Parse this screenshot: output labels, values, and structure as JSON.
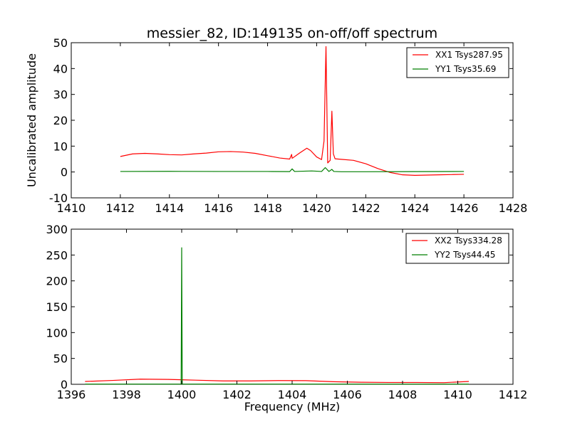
{
  "figure_title": "messier_82, ID:149135 on-off/off spectrum",
  "colors": {
    "red": "#ff0000",
    "green": "#007f00"
  },
  "chart_data": [
    {
      "type": "line",
      "title": "messier_82, ID:149135 on-off/off spectrum",
      "xlabel": "",
      "ylabel": "Uncalibrated amplitude",
      "xlim": [
        1410,
        1428
      ],
      "ylim": [
        -10,
        50
      ],
      "xticks": [
        1410,
        1412,
        1414,
        1416,
        1418,
        1420,
        1422,
        1424,
        1426,
        1428
      ],
      "yticks": [
        -10,
        0,
        10,
        20,
        30,
        40,
        50
      ],
      "legend_position": "top-right",
      "series": [
        {
          "name": "XX1 Tsys287.95",
          "color": "#ff0000",
          "x": [
            1412.0,
            1412.5,
            1413.0,
            1413.5,
            1414.0,
            1414.5,
            1415.0,
            1415.5,
            1416.0,
            1416.5,
            1417.0,
            1417.5,
            1418.0,
            1418.5,
            1418.9,
            1418.98,
            1419.0,
            1419.05,
            1419.3,
            1419.6,
            1419.75,
            1420.0,
            1420.2,
            1420.3,
            1420.38,
            1420.45,
            1420.55,
            1420.62,
            1420.68,
            1420.75,
            1421.0,
            1421.5,
            1422.0,
            1422.5,
            1423.0,
            1423.5,
            1424.0,
            1424.5,
            1425.0,
            1425.5,
            1426.0
          ],
          "values": [
            6,
            7,
            7.2,
            7,
            6.7,
            6.6,
            7,
            7.3,
            7.8,
            7.9,
            7.7,
            7.2,
            6.3,
            5.4,
            5.0,
            6.8,
            5.3,
            5.6,
            7.3,
            9.2,
            8.3,
            5.8,
            4.8,
            12,
            48.5,
            3.5,
            4.5,
            23.5,
            7.0,
            5.1,
            4.9,
            4.5,
            3.2,
            1.3,
            -0.2,
            -1.1,
            -1.3,
            -1.2,
            -1.1,
            -1.0,
            -0.9
          ]
        },
        {
          "name": "YY1 Tsys35.69",
          "color": "#007f00",
          "x": [
            1412.0,
            1414.0,
            1416.0,
            1418.0,
            1418.9,
            1419.0,
            1419.1,
            1419.8,
            1420.2,
            1420.35,
            1420.5,
            1420.62,
            1420.7,
            1421.0,
            1422.0,
            1424.0,
            1426.0
          ],
          "values": [
            0.2,
            0.25,
            0.2,
            0.2,
            0.15,
            1.2,
            0.2,
            0.4,
            0.2,
            1.7,
            0.2,
            1.0,
            0.2,
            0.1,
            0.1,
            0.15,
            0.2
          ]
        }
      ]
    },
    {
      "type": "line",
      "title": "",
      "xlabel": "Frequency (MHz)",
      "ylabel": "",
      "xlim": [
        1396,
        1412
      ],
      "ylim": [
        0,
        300
      ],
      "xticks": [
        1396,
        1398,
        1400,
        1402,
        1404,
        1406,
        1408,
        1410,
        1412
      ],
      "yticks": [
        0,
        50,
        100,
        150,
        200,
        250,
        300
      ],
      "legend_position": "top-right",
      "series": [
        {
          "name": "XX2 Tsys334.28",
          "color": "#ff0000",
          "x": [
            1396.5,
            1397.5,
            1398.5,
            1399.5,
            1400.5,
            1401.5,
            1402.5,
            1403.5,
            1404.5,
            1405.5,
            1406.5,
            1407.5,
            1408.5,
            1409.5,
            1410.4
          ],
          "values": [
            5.5,
            7.5,
            10,
            9.5,
            8,
            6.5,
            6.5,
            7.2,
            7.0,
            5.0,
            4.0,
            3.5,
            3.5,
            3.2,
            5.5
          ]
        },
        {
          "name": "YY2 Tsys44.45",
          "color": "#007f00",
          "x": [
            1396.5,
            1399.98,
            1400.0,
            1400.02,
            1410.4
          ],
          "values": [
            0.3,
            0.3,
            264,
            0.3,
            0.3
          ]
        }
      ]
    }
  ]
}
